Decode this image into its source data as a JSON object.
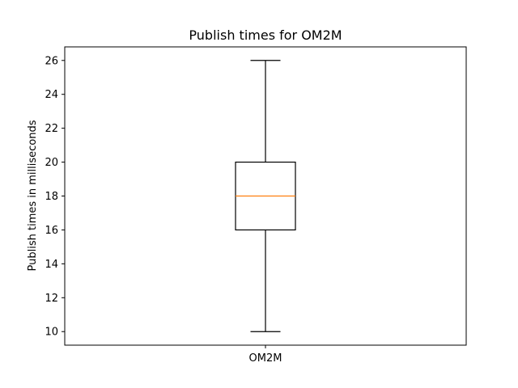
{
  "chart_data": {
    "type": "box",
    "title": "Publish times for OM2M",
    "xlabel": "",
    "ylabel": "Publish times in milliseconds",
    "categories": [
      "OM2M"
    ],
    "boxes": [
      {
        "name": "OM2M",
        "whisker_low": 10,
        "q1": 16,
        "median": 18,
        "q3": 20,
        "whisker_high": 26
      }
    ],
    "ylim": [
      9.2,
      26.8
    ],
    "yticks": [
      10,
      12,
      14,
      16,
      18,
      20,
      22,
      24,
      26
    ],
    "grid": false,
    "colors": {
      "box": "#000000",
      "median": "#ff7f0e"
    }
  }
}
